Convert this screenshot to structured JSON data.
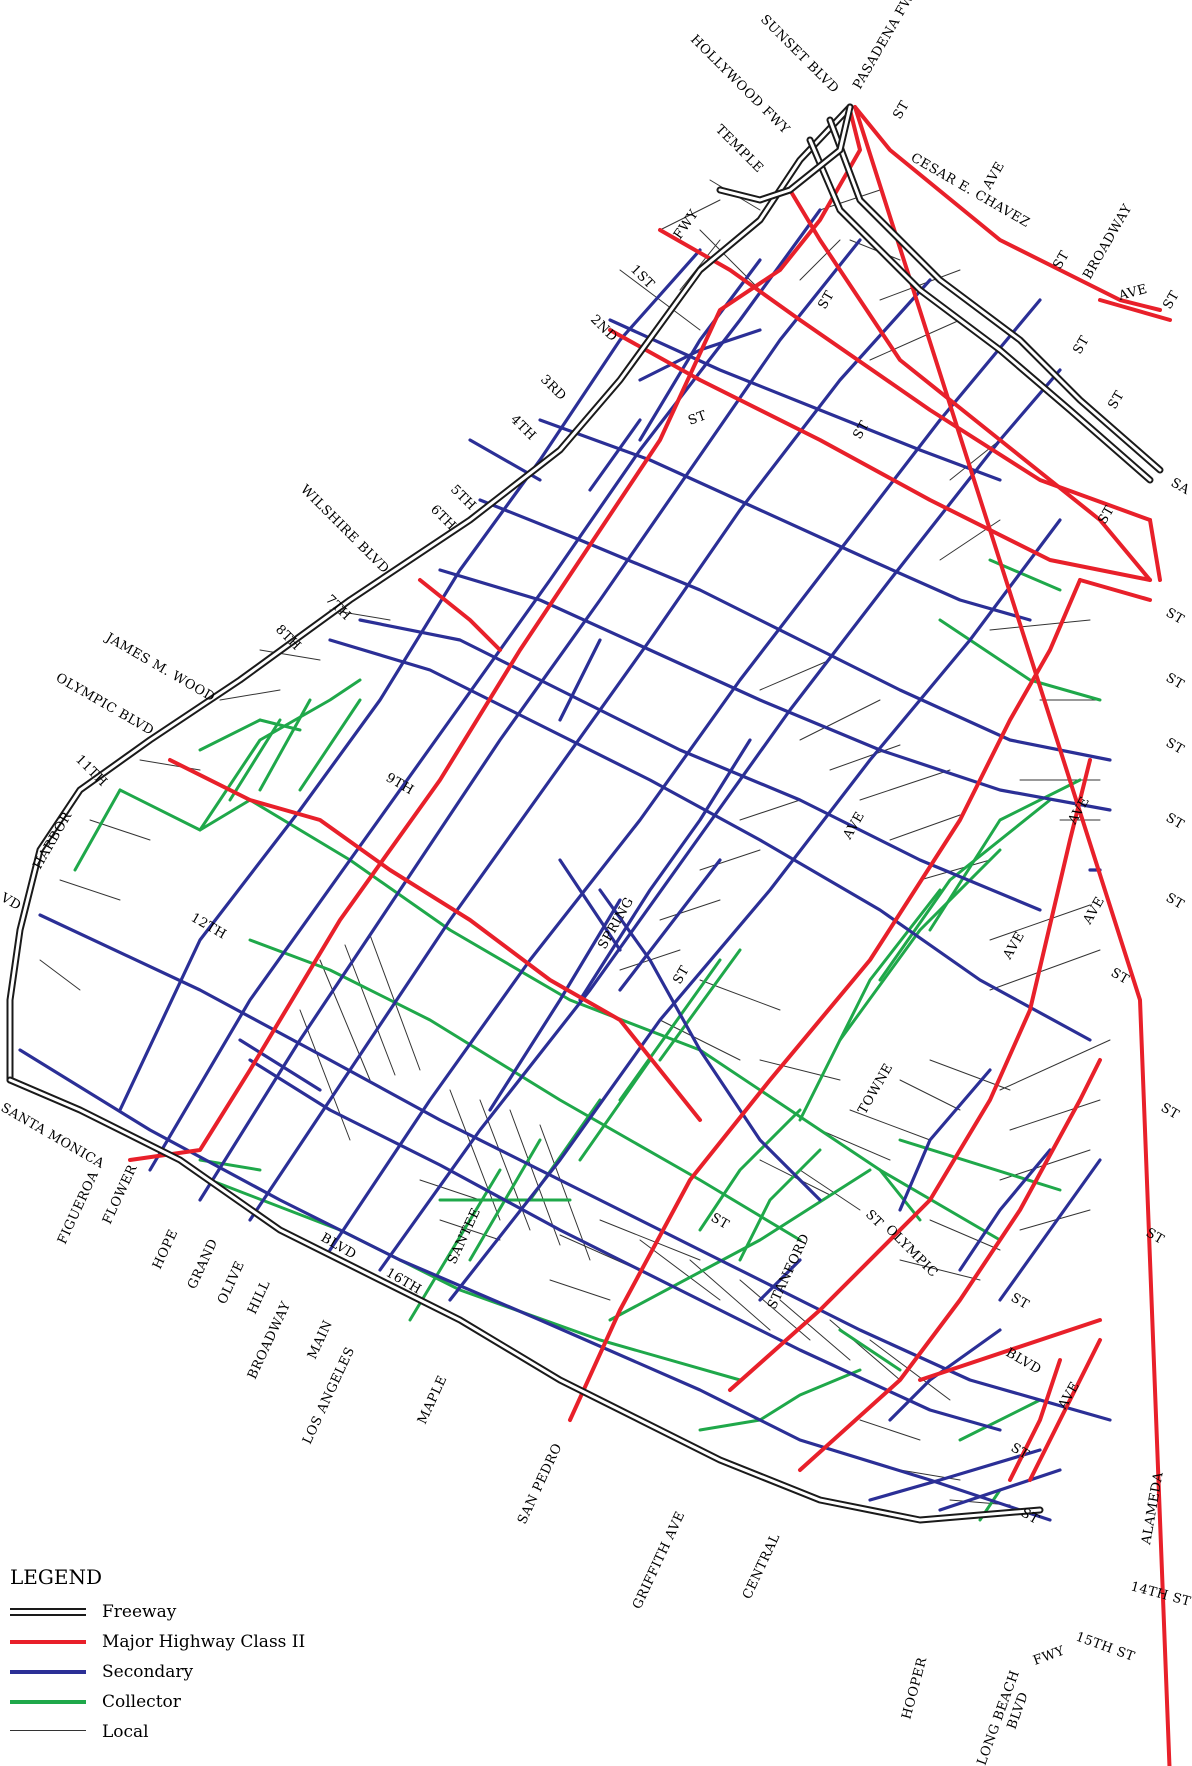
{
  "colors": {
    "freeway": "#1a1a1a",
    "major": "#e8202a",
    "secondary": "#2b2f96",
    "collector": "#1fa84a",
    "local": "#333333"
  },
  "legend": {
    "title": "LEGEND",
    "items": [
      {
        "key": "freeway",
        "label": "Freeway"
      },
      {
        "key": "major",
        "label": "Major Highway Class II"
      },
      {
        "key": "secondary",
        "label": "Secondary"
      },
      {
        "key": "collector",
        "label": "Collector"
      },
      {
        "key": "local",
        "label": "Local"
      }
    ]
  },
  "labels": {
    "sunset": "SUNSET BLVD",
    "pasadena": "PASADENA FWY",
    "hollywood": "HOLLYWOOD FWY",
    "temple": "TEMPLE",
    "temple_st": "ST",
    "cesar": "CESAR E. CHAVEZ",
    "cesar_ave": "AVE",
    "broadway_ne": "BROADWAY",
    "broadway_st": "ST",
    "fwy": "FWY",
    "first": "1ST",
    "second": "2ND",
    "third": "3RD",
    "fourth": "4TH",
    "fifth": "5TH",
    "sixth": "6TH",
    "wilshire": "WILSHIRE BLVD",
    "seventh": "7TH",
    "eighth": "8TH",
    "jameswood": "JAMES M. WOOD",
    "olympic_blvd": "OLYMPIC BLVD",
    "eleventh": "11TH",
    "harbor": "HARBOR",
    "vd": "VD",
    "ninth": "9TH",
    "twelfth": "12TH",
    "spring": "SPRING",
    "santamonica": "SANTA MONICA",
    "figueroa": "FIGUEROA",
    "flower": "FLOWER",
    "hope": "HOPE",
    "grand": "GRAND",
    "olive": "OLIVE",
    "hill": "HILL",
    "broadway": "BROADWAY",
    "main": "MAIN",
    "losangeles": "LOS ANGELES",
    "maple": "MAPLE",
    "santee": "SANTEE",
    "sanpedro": "SAN PEDRO",
    "griffith": "GRIFFITH AVE",
    "central": "CENTRAL",
    "hooper": "HOOPER",
    "longbeach": "LONG BEACH",
    "longbeach_blvd": "BLVD",
    "longbeach_fwy": "FWY",
    "fifteenth": "15TH ST",
    "fourteenth": "14TH ST",
    "alameda": "ALAMEDA",
    "blvd_a": "BLVD",
    "sixteenth": "16TH",
    "stanford": "STANFORD",
    "towne": "TOWNE",
    "olympic": "OLYMPIC",
    "ave_a": "AVE",
    "ave_b": "AVE",
    "ave_c": "AVE",
    "ave_d": "AVE",
    "ave_e": "AVE",
    "ave_f": "AVE",
    "blvd_b": "BLVD",
    "sa": "SA",
    "st": [
      "ST",
      "ST",
      "ST",
      "ST",
      "ST",
      "ST",
      "ST",
      "ST",
      "ST",
      "ST",
      "ST",
      "ST",
      "ST",
      "ST",
      "ST",
      "ST",
      "ST",
      "ST",
      "ST",
      "ST",
      "ST"
    ]
  }
}
